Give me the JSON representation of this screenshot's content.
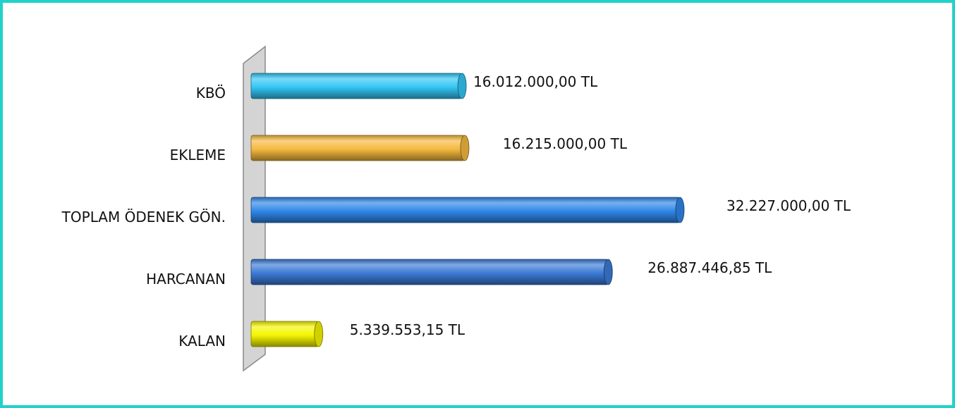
{
  "chart_data": {
    "type": "bar",
    "orientation": "horizontal",
    "style": "3d-cylinder",
    "categories": [
      "KBÖ",
      "EKLEME",
      "TOPLAM ÖDENEK GÖN.",
      "HARCANAN",
      "KALAN"
    ],
    "values": [
      16012000.0,
      16215000.0,
      32227000.0,
      26887446.85,
      5339553.15
    ],
    "data_labels": [
      "16.012.000,00 TL",
      "16.215.000,00 TL",
      "32.227.000,00 TL",
      "26.887.446,85 TL",
      "5.339.553,15 TL"
    ],
    "bar_colors": [
      "#33c6f5",
      "#f5b93e",
      "#2f86e8",
      "#3b7ad6",
      "#f5f500"
    ],
    "title": "",
    "xlabel": "",
    "ylabel": "",
    "xlim": [
      0,
      32227000
    ],
    "grid": false,
    "legend": "none"
  },
  "colors": {
    "frame_border": "#22d1c9",
    "wall_fill": "#d4d4d4",
    "wall_stroke": "#8a8a8a"
  }
}
